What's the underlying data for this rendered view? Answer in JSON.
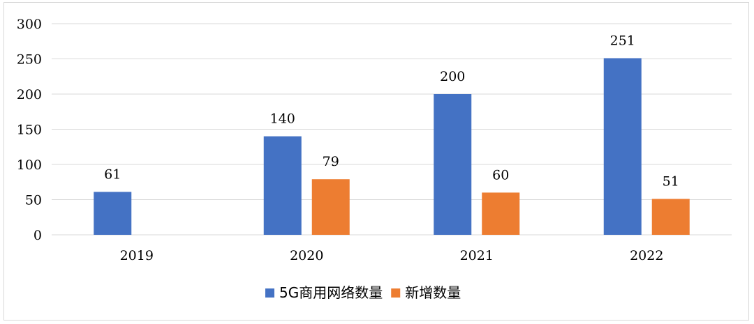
{
  "chart_data": {
    "type": "bar",
    "categories": [
      "2019",
      "2020",
      "2021",
      "2022"
    ],
    "series": [
      {
        "name": "5G商用网络数量",
        "values": [
          61,
          140,
          200,
          251
        ],
        "color": "#4472c4"
      },
      {
        "name": "新增数量",
        "values": [
          null,
          79,
          60,
          51
        ],
        "color": "#ed7d31"
      }
    ],
    "ylim": [
      0,
      300
    ],
    "yticks": [
      0,
      50,
      100,
      150,
      200,
      250,
      300
    ],
    "grid": true,
    "legend": "bottom",
    "title": "",
    "xlabel": "",
    "ylabel": ""
  }
}
